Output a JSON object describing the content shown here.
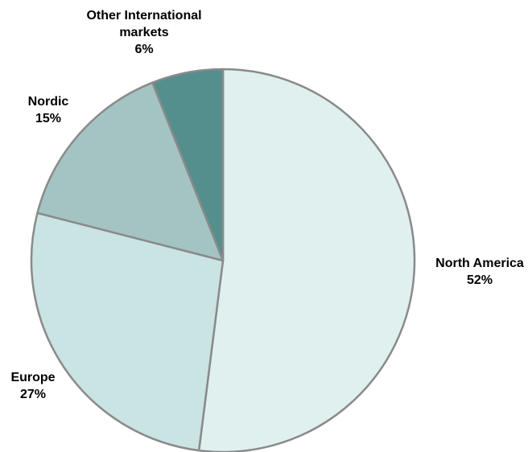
{
  "chart_data": {
    "type": "pie",
    "title": "",
    "slices": [
      {
        "label_lines": [
          "North America"
        ],
        "percent_label": "52%",
        "value": 52,
        "color": "#dff0ef"
      },
      {
        "label_lines": [
          "Europe"
        ],
        "percent_label": "27%",
        "value": 27,
        "color": "#cae3e3"
      },
      {
        "label_lines": [
          "Nordic"
        ],
        "percent_label": "15%",
        "value": 15,
        "color": "#a3c4c3"
      },
      {
        "label_lines": [
          "Other International",
          "markets"
        ],
        "percent_label": "6%",
        "value": 6,
        "color": "#558f8d"
      }
    ],
    "start_angle": "12 o'clock",
    "direction": "clockwise",
    "legend": "none",
    "outline_color": "#8a8a8a"
  }
}
